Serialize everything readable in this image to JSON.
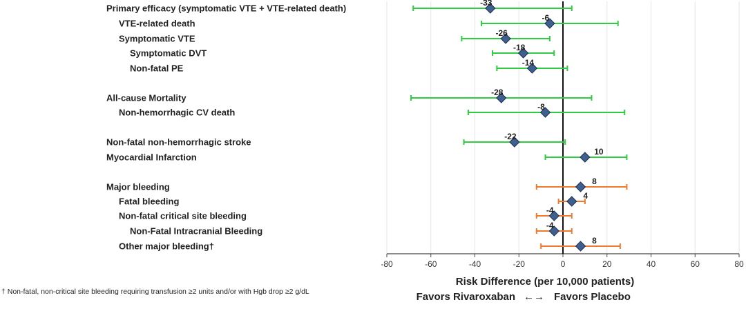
{
  "chart_data": {
    "type": "forest",
    "xlabel": "Risk Difference (per 10,000 patients)",
    "xlim": [
      -80,
      80
    ],
    "xticks": [
      -80,
      -60,
      -40,
      -20,
      0,
      20,
      40,
      60,
      80
    ],
    "favors_left": "Favors Rivaroxaban",
    "favors_right": "Favors Placebo",
    "arrow_glyph": "←→",
    "footnote": "† Non-fatal, non-critical site bleeding requiring transfusion ≥2 units and/or with Hgb drop ≥2 g/dL",
    "colors": {
      "efficacy": "#2ecc40",
      "safety": "#f07a2a",
      "marker": "#3f5f8f",
      "marker_stroke": "#1c2f50",
      "grid": "#e6e6e6"
    },
    "rows": [
      {
        "label": "Primary efficacy (symptomatic VTE + VTE-related death)",
        "indent": 0,
        "value": -33,
        "value_text": "-33",
        "ci": [
          -68,
          4
        ],
        "color": "efficacy"
      },
      {
        "label": "VTE-related death",
        "indent": 1,
        "value": -6,
        "value_text": "-6",
        "ci": [
          -37,
          25
        ],
        "color": "efficacy"
      },
      {
        "label": "Symptomatic VTE",
        "indent": 1,
        "value": -26,
        "value_text": "-26",
        "ci": [
          -46,
          -6
        ],
        "color": "efficacy"
      },
      {
        "label": "Symptomatic DVT",
        "indent": 2,
        "value": -18,
        "value_text": "-18",
        "ci": [
          -32,
          -4
        ],
        "color": "efficacy"
      },
      {
        "label": "Non-fatal PE",
        "indent": 2,
        "value": -14,
        "value_text": "-14",
        "ci": [
          -30,
          2
        ],
        "color": "efficacy"
      },
      {
        "label": "All-cause Mortality",
        "indent": 0,
        "value": -28,
        "value_text": "-28",
        "ci": [
          -69,
          13
        ],
        "color": "efficacy"
      },
      {
        "label": "Non-hemorrhagic CV death",
        "indent": 1,
        "value": -8,
        "value_text": "-8",
        "ci": [
          -43,
          28
        ],
        "color": "efficacy"
      },
      {
        "label": "Non-fatal non-hemorrhagic stroke",
        "indent": 0,
        "value": -22,
        "value_text": "-22",
        "ci": [
          -45,
          1
        ],
        "color": "efficacy"
      },
      {
        "label": "Myocardial Infarction",
        "indent": 0,
        "value": 10,
        "value_text": "10",
        "ci": [
          -8,
          29
        ],
        "color": "efficacy"
      },
      {
        "label": "Major bleeding",
        "indent": 0,
        "value": 8,
        "value_text": "8",
        "ci": [
          -12,
          29
        ],
        "color": "safety"
      },
      {
        "label": "Fatal bleeding",
        "indent": 1,
        "value": 4,
        "value_text": "4",
        "ci": [
          -2,
          10
        ],
        "color": "safety"
      },
      {
        "label": "Non-fatal critical site bleeding",
        "indent": 1,
        "value": -4,
        "value_text": "-4",
        "ci": [
          -12,
          4
        ],
        "color": "safety"
      },
      {
        "label": "Non-Fatal Intracranial Bleeding",
        "indent": 2,
        "value": -4,
        "value_text": "-4",
        "ci": [
          -12,
          4
        ],
        "color": "safety"
      },
      {
        "label": "Other major bleeding†",
        "indent": 1,
        "value": 8,
        "value_text": "8",
        "ci": [
          -10,
          26
        ],
        "color": "safety"
      }
    ]
  }
}
